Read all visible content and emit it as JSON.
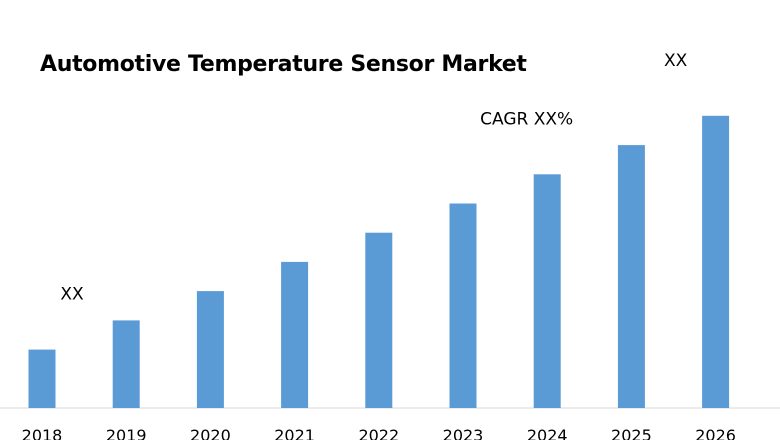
{
  "chart_data": {
    "type": "bar",
    "title": "Automotive Temperature Sensor Market",
    "categories": [
      "2018",
      "2019",
      "2020",
      "2021",
      "2022",
      "2023",
      "2024",
      "2025",
      "2026"
    ],
    "values": [
      2.0,
      3.0,
      4.0,
      5.0,
      6.0,
      7.0,
      8.0,
      9.0,
      10.0
    ],
    "bar_color": "#5b9bd5",
    "grid": false,
    "legend": "none",
    "ylim": [
      0,
      10.2
    ],
    "annotations": [
      {
        "text": "XX",
        "category": "2018"
      },
      {
        "text": "CAGR XX%",
        "category": "2024"
      },
      {
        "text": "XX",
        "category": "2026"
      }
    ]
  }
}
